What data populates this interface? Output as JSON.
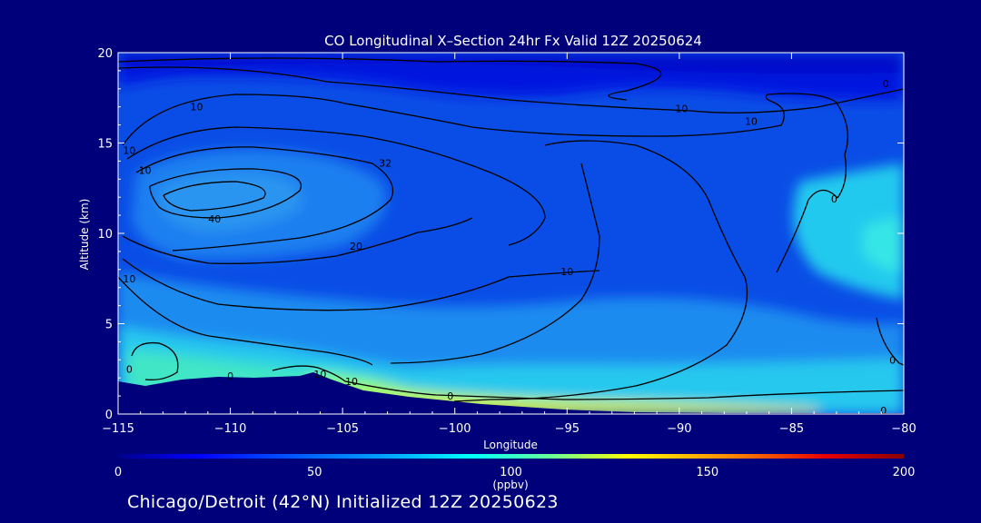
{
  "chart_data": {
    "type": "heatmap",
    "title": "CO Longitudinal X–Section 24hr  Fx Valid 12Z 20250624",
    "xlabel": "Longitude",
    "ylabel": "Altitude (km)",
    "xlim": [
      -115,
      -80
    ],
    "ylim": [
      0,
      20
    ],
    "x_ticks": [
      -115,
      -110,
      -105,
      -100,
      -95,
      -90,
      -85,
      -80
    ],
    "x_tick_labels": [
      "−115",
      "−110",
      "−105",
      "−100",
      "−95",
      "−90",
      "−85",
      "−80"
    ],
    "y_ticks": [
      0,
      5,
      10,
      15,
      20
    ],
    "y_tick_labels": [
      "0",
      "5",
      "10",
      "15",
      "20"
    ],
    "colorbar": {
      "range": [
        0,
        200
      ],
      "ticks": [
        0,
        50,
        100,
        150,
        200
      ],
      "tick_labels": [
        "0",
        "50",
        "100",
        "150",
        "200"
      ],
      "unit": "(ppbv)",
      "colors": [
        "#00008c",
        "#0000ff",
        "#0066ff",
        "#00ccff",
        "#33ffcc",
        "#ccff33",
        "#ffcc00",
        "#ff6600",
        "#e60000",
        "#8c0000"
      ]
    },
    "contour_labels": [
      {
        "text": "10",
        "lon": -111.5,
        "alt": 17.0
      },
      {
        "text": "10",
        "lon": -89.9,
        "alt": 16.9
      },
      {
        "text": "10",
        "lon": -86.8,
        "alt": 16.2
      },
      {
        "text": "0",
        "lon": -80.8,
        "alt": 18.3
      },
      {
        "text": "10",
        "lon": -114.5,
        "alt": 14.6
      },
      {
        "text": "10",
        "lon": -113.8,
        "alt": 13.5
      },
      {
        "text": "32",
        "lon": -103.1,
        "alt": 13.9
      },
      {
        "text": "40",
        "lon": -110.7,
        "alt": 10.8
      },
      {
        "text": "20",
        "lon": -104.4,
        "alt": 9.3
      },
      {
        "text": "10",
        "lon": -95.0,
        "alt": 7.9
      },
      {
        "text": "0",
        "lon": -83.1,
        "alt": 11.9
      },
      {
        "text": "10",
        "lon": -114.5,
        "alt": 7.5
      },
      {
        "text": "0",
        "lon": -114.5,
        "alt": 2.5
      },
      {
        "text": "0",
        "lon": -110.0,
        "alt": 2.1
      },
      {
        "text": "10",
        "lon": -106.0,
        "alt": 2.2
      },
      {
        "text": "10",
        "lon": -104.6,
        "alt": 1.8
      },
      {
        "text": "0",
        "lon": -100.2,
        "alt": 1.0
      },
      {
        "text": "0",
        "lon": -80.5,
        "alt": 3.0
      },
      {
        "text": "0",
        "lon": -80.9,
        "alt": 0.2
      }
    ],
    "grid": false,
    "legend": "none"
  },
  "footer": "Chicago/Detroit (42°N) Initialized 12Z 20250623"
}
